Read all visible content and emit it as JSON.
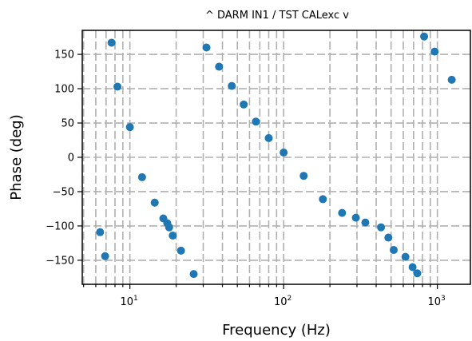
{
  "chart_data": {
    "type": "scatter",
    "title": "^ DARM IN1 / TST CALexc v",
    "xlabel": "Frequency (Hz)",
    "ylabel": "Phase (deg)",
    "x_scale": "log",
    "xlim": [
      4.9,
      1640
    ],
    "ylim": [
      -185,
      185
    ],
    "yticks": [
      150,
      100,
      50,
      0,
      -50,
      -100,
      -150
    ],
    "ytick_labels": [
      "150",
      "100",
      "50",
      "0",
      "−50",
      "−100",
      "−150"
    ],
    "xticks": [
      10,
      100,
      1000
    ],
    "xtick_labels": [
      {
        "base": "10",
        "exp": "1"
      },
      {
        "base": "10",
        "exp": "2"
      },
      {
        "base": "10",
        "exp": "3"
      }
    ],
    "grid": true,
    "marker_color": "#1f77b4",
    "x": [
      6.4,
      6.9,
      7.6,
      8.3,
      10.0,
      12.0,
      14.5,
      16.5,
      17.5,
      18.0,
      19.0,
      21.5,
      26.0,
      31.5,
      38.0,
      46.0,
      55.0,
      66.0,
      80.0,
      100.0,
      135.0,
      180.0,
      240.0,
      295.0,
      340.0,
      430.0,
      480.0,
      520.0,
      620.0,
      690.0,
      740.0,
      820.0,
      960.0,
      1240.0
    ],
    "y": [
      -109,
      -144,
      167,
      103,
      44,
      -29,
      -66,
      -89,
      -96,
      -102,
      -114,
      -136,
      -170,
      160,
      132,
      104,
      77,
      52,
      28,
      7,
      -27,
      -61,
      -81,
      -88,
      -95,
      -102,
      -117,
      -135,
      -145,
      -160,
      -169,
      176,
      154,
      113
    ]
  }
}
